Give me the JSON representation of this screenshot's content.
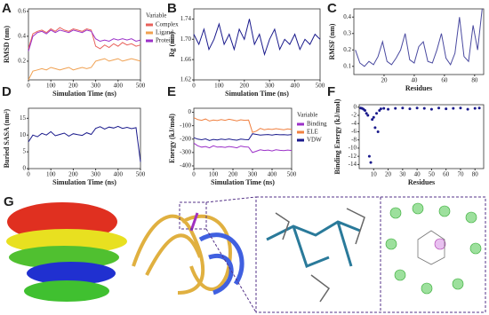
{
  "chart_data": [
    {
      "label": "A",
      "type": "line",
      "xlabel": "Simulation Time (ns)",
      "ylabel": "RMSD (nm)",
      "xlim": [
        0,
        500
      ],
      "xticks": [
        0,
        100,
        200,
        300,
        400,
        500
      ],
      "ylim": [
        0.05,
        0.62
      ],
      "yticks": [
        0.2,
        0.4,
        0.6
      ],
      "legend_title": "Variable",
      "x": [
        0,
        20,
        40,
        60,
        80,
        100,
        120,
        140,
        160,
        180,
        200,
        220,
        240,
        260,
        280,
        300,
        320,
        340,
        360,
        380,
        400,
        420,
        440,
        460,
        480,
        500
      ],
      "series": [
        {
          "name": "Complex",
          "color": "#e8605a",
          "values": [
            0.3,
            0.42,
            0.44,
            0.45,
            0.43,
            0.46,
            0.44,
            0.47,
            0.45,
            0.44,
            0.46,
            0.45,
            0.44,
            0.46,
            0.45,
            0.32,
            0.3,
            0.33,
            0.31,
            0.34,
            0.32,
            0.35,
            0.33,
            0.34,
            0.32,
            0.33
          ]
        },
        {
          "name": "Ligand",
          "color": "#f0a050",
          "values": [
            0.05,
            0.12,
            0.13,
            0.14,
            0.13,
            0.15,
            0.14,
            0.13,
            0.14,
            0.15,
            0.13,
            0.14,
            0.15,
            0.14,
            0.15,
            0.2,
            0.21,
            0.22,
            0.2,
            0.21,
            0.22,
            0.2,
            0.21,
            0.22,
            0.21,
            0.2
          ]
        },
        {
          "name": "Protein",
          "color": "#9b30c8",
          "values": [
            0.28,
            0.4,
            0.43,
            0.44,
            0.42,
            0.45,
            0.43,
            0.45,
            0.44,
            0.43,
            0.45,
            0.44,
            0.43,
            0.45,
            0.44,
            0.38,
            0.36,
            0.37,
            0.36,
            0.38,
            0.37,
            0.38,
            0.37,
            0.38,
            0.36,
            0.37
          ]
        }
      ]
    },
    {
      "label": "B",
      "type": "line",
      "xlabel": "Simulation Time (ns)",
      "ylabel": "Rg (nm)",
      "xlim": [
        0,
        500
      ],
      "xticks": [
        0,
        100,
        200,
        300,
        400,
        500
      ],
      "ylim": [
        1.62,
        1.76
      ],
      "yticks": [
        1.62,
        1.66,
        {
          "value": 1.7,
          "label": "1.70"
        },
        1.74
      ],
      "x": [
        0,
        20,
        40,
        60,
        80,
        100,
        120,
        140,
        160,
        180,
        200,
        220,
        240,
        260,
        280,
        300,
        320,
        340,
        360,
        380,
        400,
        420,
        440,
        460,
        480,
        500
      ],
      "series": [
        {
          "color": "#1a1a8c",
          "values": [
            1.71,
            1.69,
            1.72,
            1.68,
            1.7,
            1.73,
            1.69,
            1.71,
            1.68,
            1.72,
            1.7,
            1.74,
            1.69,
            1.71,
            1.67,
            1.7,
            1.72,
            1.68,
            1.7,
            1.69,
            1.71,
            1.68,
            1.7,
            1.69,
            1.71,
            1.7
          ]
        }
      ]
    },
    {
      "label": "C",
      "type": "line",
      "xlabel": "Residues",
      "ylabel": "RMSF (nm)",
      "xlim": [
        0,
        86
      ],
      "xticks": [
        20,
        40,
        60,
        80
      ],
      "ylim": [
        0.05,
        0.45
      ],
      "yticks": [
        0.1,
        0.2,
        0.3,
        0.4
      ],
      "x": [
        1,
        4,
        7,
        10,
        13,
        16,
        19,
        22,
        25,
        28,
        31,
        34,
        37,
        40,
        43,
        46,
        49,
        52,
        55,
        58,
        61,
        64,
        67,
        70,
        73,
        76,
        79,
        82,
        85
      ],
      "series": [
        {
          "color": "#4a4aa0",
          "values": [
            0.2,
            0.12,
            0.1,
            0.13,
            0.11,
            0.16,
            0.25,
            0.13,
            0.11,
            0.15,
            0.2,
            0.3,
            0.14,
            0.12,
            0.22,
            0.25,
            0.13,
            0.12,
            0.2,
            0.3,
            0.15,
            0.11,
            0.18,
            0.4,
            0.16,
            0.13,
            0.35,
            0.2,
            0.45
          ]
        }
      ]
    },
    {
      "label": "D",
      "type": "line",
      "xlabel": "Simulation Time (ns)",
      "ylabel": "Buried SASA (nm²)",
      "xlim": [
        0,
        500
      ],
      "xticks": [
        0,
        100,
        200,
        300,
        400,
        500
      ],
      "ylim": [
        0,
        18
      ],
      "yticks": [
        0,
        5,
        10,
        15
      ],
      "x": [
        0,
        20,
        40,
        60,
        80,
        100,
        120,
        140,
        160,
        180,
        200,
        220,
        240,
        260,
        280,
        300,
        320,
        340,
        360,
        380,
        400,
        420,
        440,
        460,
        480,
        500
      ],
      "series": [
        {
          "color": "#1a1a8c",
          "values": [
            8,
            10,
            9.5,
            10.5,
            10,
            11,
            9.8,
            10.2,
            10.6,
            9.7,
            10.4,
            10.1,
            9.9,
            10.7,
            10.2,
            12,
            12.5,
            11.8,
            12.4,
            12.1,
            12.6,
            12,
            12.3,
            11.9,
            12.2,
            2
          ]
        }
      ]
    },
    {
      "label": "E",
      "type": "line",
      "xlabel": "Simulation Time (ns)",
      "ylabel": "Energy (kJ/mol)",
      "xlim": [
        0,
        500
      ],
      "xticks": [
        0,
        100,
        200,
        300,
        400,
        500
      ],
      "ylim": [
        -420,
        30
      ],
      "yticks": [
        -400,
        -300,
        -200,
        -100,
        0
      ],
      "legend_title": "Variable",
      "x": [
        0,
        20,
        40,
        60,
        80,
        100,
        120,
        140,
        160,
        180,
        200,
        220,
        240,
        260,
        280,
        300,
        320,
        340,
        360,
        380,
        400,
        420,
        440,
        460,
        480,
        500
      ],
      "series": [
        {
          "name": "Binding",
          "color": "#9b30c8",
          "values": [
            -230,
            -250,
            -260,
            -255,
            -265,
            -250,
            -260,
            -258,
            -262,
            -255,
            -260,
            -265,
            -252,
            -258,
            -260,
            -300,
            -290,
            -280,
            -285,
            -282,
            -288,
            -280,
            -284,
            -286,
            -282,
            -285
          ]
        },
        {
          "name": "ELE",
          "color": "#f08040",
          "values": [
            -40,
            -55,
            -60,
            -50,
            -65,
            -58,
            -62,
            -55,
            -60,
            -52,
            -58,
            -64,
            -56,
            -60,
            -58,
            -150,
            -140,
            -120,
            -130,
            -125,
            -128,
            -122,
            -126,
            -130,
            -124,
            -128
          ]
        },
        {
          "name": "VDW",
          "color": "#1a1a8c",
          "values": [
            -190,
            -200,
            -205,
            -198,
            -210,
            -202,
            -206,
            -200,
            -204,
            -199,
            -205,
            -208,
            -200,
            -203,
            -205,
            -160,
            -165,
            -170,
            -168,
            -166,
            -170,
            -165,
            -168,
            -167,
            -169,
            -166
          ]
        }
      ]
    },
    {
      "label": "F",
      "type": "scatter",
      "xlabel": "Residues",
      "ylabel": "Binding Energy (kJ/mol)",
      "xlim": [
        0,
        86
      ],
      "xticks": [
        10,
        20,
        30,
        40,
        50,
        60,
        70,
        80
      ],
      "ylim": [
        -15,
        0.6
      ],
      "yticks": [
        0,
        -2,
        -4,
        -6,
        -8,
        -10,
        -12,
        -14
      ],
      "color": "#1a1a8c",
      "x": [
        1,
        2,
        3,
        4,
        5,
        6,
        7,
        8,
        9,
        10,
        11,
        12,
        13,
        14,
        15,
        17,
        20,
        25,
        30,
        35,
        40,
        45,
        50,
        55,
        60,
        65,
        70,
        75,
        80,
        83
      ],
      "values": [
        -0.2,
        -0.3,
        -0.5,
        -0.8,
        -1.5,
        -2,
        -12,
        -13.5,
        -3,
        -2.5,
        -5,
        -1.5,
        -6,
        -0.8,
        -0.4,
        -0.3,
        -0.5,
        -0.3,
        -0.2,
        -0.4,
        -0.2,
        -0.3,
        -0.5,
        -0.2,
        -0.4,
        -0.3,
        -0.2,
        -0.5,
        -0.3,
        -0.2
      ]
    }
  ],
  "panel_g": {
    "label": "G"
  }
}
